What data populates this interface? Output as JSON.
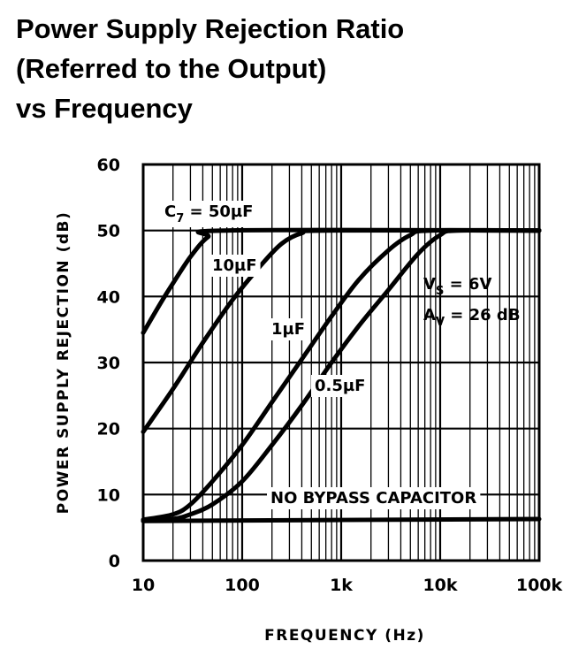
{
  "chart_data": {
    "type": "line",
    "title_lines": [
      "Power Supply Rejection Ratio",
      "(Referred to the Output)",
      "vs Frequency"
    ],
    "xlabel": "FREQUENCY (Hz)",
    "ylabel": "POWER SUPPLY REJECTION (dB)",
    "x_scale": "log",
    "xlim": [
      10,
      100000
    ],
    "ylim": [
      0,
      60
    ],
    "x_ticks": [
      {
        "value": 10,
        "label": "10"
      },
      {
        "value": 100,
        "label": "100"
      },
      {
        "value": 1000,
        "label": "1k"
      },
      {
        "value": 10000,
        "label": "10k"
      },
      {
        "value": 100000,
        "label": "100k"
      }
    ],
    "y_ticks": [
      {
        "value": 0,
        "label": "0"
      },
      {
        "value": 10,
        "label": "10"
      },
      {
        "value": 20,
        "label": "20"
      },
      {
        "value": 30,
        "label": "30"
      },
      {
        "value": 40,
        "label": "40"
      },
      {
        "value": 50,
        "label": "50"
      },
      {
        "value": 60,
        "label": "60"
      }
    ],
    "grid": true,
    "series": [
      {
        "name": "C7 = 50µF",
        "points": [
          [
            10,
            34.5
          ],
          [
            15,
            39
          ],
          [
            20,
            42
          ],
          [
            30,
            46
          ],
          [
            45,
            49
          ],
          [
            70,
            50
          ],
          [
            100000,
            50
          ]
        ]
      },
      {
        "name": "10µF",
        "points": [
          [
            10,
            19.5
          ],
          [
            20,
            26
          ],
          [
            40,
            33
          ],
          [
            80,
            39.5
          ],
          [
            150,
            44.5
          ],
          [
            250,
            48
          ],
          [
            400,
            49.6
          ],
          [
            700,
            50
          ],
          [
            100000,
            50
          ]
        ]
      },
      {
        "name": "1µF",
        "points": [
          [
            10,
            6.2
          ],
          [
            20,
            7
          ],
          [
            30,
            8.5
          ],
          [
            50,
            12
          ],
          [
            100,
            17.5
          ],
          [
            200,
            24
          ],
          [
            400,
            30.5
          ],
          [
            800,
            37
          ],
          [
            1500,
            42.5
          ],
          [
            3000,
            47
          ],
          [
            5000,
            49.3
          ],
          [
            8000,
            50
          ],
          [
            100000,
            50
          ]
        ]
      },
      {
        "name": "0.5µF",
        "points": [
          [
            10,
            6
          ],
          [
            20,
            6.3
          ],
          [
            30,
            7
          ],
          [
            50,
            8.5
          ],
          [
            100,
            12
          ],
          [
            200,
            17.5
          ],
          [
            400,
            23.5
          ],
          [
            800,
            30
          ],
          [
            1500,
            35.5
          ],
          [
            3000,
            41
          ],
          [
            6000,
            46.5
          ],
          [
            10000,
            49.3
          ],
          [
            15000,
            50
          ],
          [
            100000,
            50
          ]
        ]
      },
      {
        "name": "NO BYPASS CAPACITOR",
        "points": [
          [
            10,
            6
          ],
          [
            100000,
            6.3
          ]
        ]
      }
    ],
    "annotations": [
      {
        "main": "C",
        "sub": "7",
        "rest": " = 50µF"
      },
      {
        "main": "10µF",
        "sub": "",
        "rest": ""
      },
      {
        "main": "1µF",
        "sub": "",
        "rest": ""
      },
      {
        "main": "0.5µF",
        "sub": "",
        "rest": ""
      },
      {
        "main": "NO BYPASS CAPACITOR",
        "sub": "",
        "rest": ""
      },
      {
        "main": "V",
        "sub": "S",
        "rest": " = 6V"
      },
      {
        "main": "A",
        "sub": "V",
        "rest": " = 26 dB"
      }
    ]
  }
}
